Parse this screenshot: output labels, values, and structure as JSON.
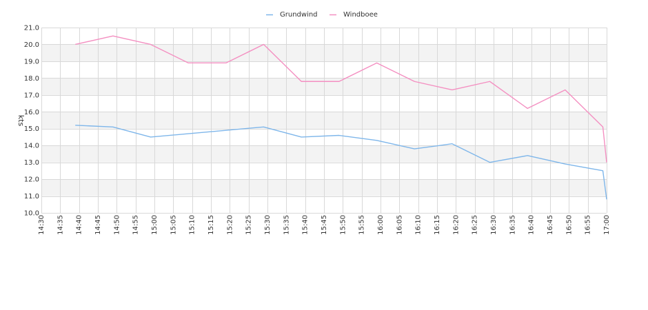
{
  "chart_data": {
    "type": "line",
    "title": "",
    "xlabel": "",
    "ylabel": "kts",
    "ylim": [
      10.0,
      21.0
    ],
    "yticks": [
      10.0,
      11.0,
      12.0,
      13.0,
      14.0,
      15.0,
      16.0,
      17.0,
      18.0,
      19.0,
      20.0,
      21.0
    ],
    "ytick_labels": [
      "10.0",
      "11.0",
      "12.0",
      "13.0",
      "14.0",
      "15.0",
      "16.0",
      "17.0",
      "18.0",
      "19.0",
      "20.0",
      "21.0"
    ],
    "xlim": [
      "14:30",
      "17:00"
    ],
    "xtick_labels": [
      "14:30",
      "14:35",
      "14:40",
      "14:45",
      "14:50",
      "14:55",
      "15:00",
      "15:05",
      "15:10",
      "15:15",
      "15:20",
      "15:25",
      "15:30",
      "15:35",
      "15:40",
      "15:45",
      "15:50",
      "15:55",
      "16:00",
      "16:05",
      "16:10",
      "16:15",
      "16:20",
      "16:25",
      "16:30",
      "16:35",
      "16:40",
      "16:45",
      "16:50",
      "16:55",
      "17:00"
    ],
    "grid": true,
    "legend_position": "top-center",
    "series": [
      {
        "name": "Grundwind",
        "color": "#7eb6ea",
        "x": [
          "14:39",
          "14:49",
          "14:59",
          "15:09",
          "15:19",
          "15:29",
          "15:39",
          "15:49",
          "15:59",
          "16:09",
          "16:19",
          "16:29",
          "16:39",
          "16:49",
          "16:59",
          "17:00"
        ],
        "values": [
          15.2,
          15.1,
          14.5,
          14.7,
          14.9,
          15.1,
          14.5,
          14.6,
          14.3,
          13.8,
          14.1,
          13.0,
          13.4,
          12.9,
          12.5,
          10.8
        ]
      },
      {
        "name": "Windboee",
        "color": "#f48fc1",
        "x": [
          "14:39",
          "14:49",
          "14:59",
          "15:09",
          "15:19",
          "15:29",
          "15:39",
          "15:49",
          "15:59",
          "16:09",
          "16:19",
          "16:29",
          "16:39",
          "16:49",
          "16:59",
          "17:00"
        ],
        "values": [
          20.0,
          20.5,
          20.0,
          18.9,
          18.9,
          20.0,
          17.8,
          17.8,
          18.9,
          17.8,
          17.3,
          17.8,
          16.2,
          17.3,
          15.1,
          13.0
        ]
      }
    ]
  }
}
